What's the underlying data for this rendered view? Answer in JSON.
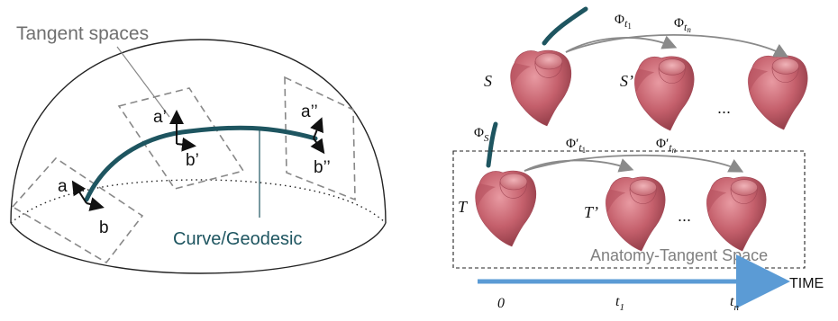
{
  "hemisphere": {
    "title": "Tangent spaces",
    "curve_label": "Curve/Geodesic",
    "vectors": [
      {
        "a": "a",
        "b": "b"
      },
      {
        "a": "a’",
        "b": "b’"
      },
      {
        "a": "a’’",
        "b": "b’’"
      }
    ]
  },
  "anatomy": {
    "phi_s": "Φ",
    "phi_s_sub": "S",
    "phi_t1": "Φ",
    "phi_t1_sub": "t",
    "phi_t1_subsub": "1",
    "phi_tn": "Φ",
    "phi_tn_sub": "t",
    "phi_tn_subsub": "n",
    "phi_prime_t1": "Φ′",
    "phi_prime_tn": "Φ′",
    "label_S": "S",
    "label_S_prime": "S’",
    "label_T": "T",
    "label_T_prime": "T’",
    "ellipsis_top": "...",
    "ellipsis_bottom": "...",
    "box_label": "Anatomy-Tangent Space",
    "time_label": "TIME",
    "time_ticks": [
      "0",
      "t",
      "t"
    ],
    "time_tick_subs": [
      "",
      "1",
      "n"
    ]
  },
  "colors": {
    "curve": "#1e5560",
    "heart_fill": "#c5606c",
    "heart_dark": "#9e4450",
    "time_arrow": "#5b9bd5",
    "dashed": "#888888"
  }
}
